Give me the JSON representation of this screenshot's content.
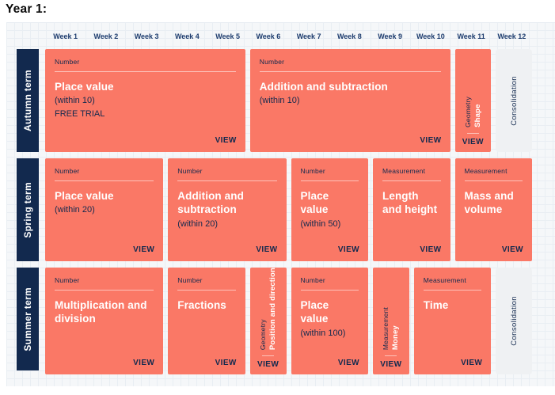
{
  "page": {
    "title": "Year 1:"
  },
  "labels": {
    "view": "VIEW"
  },
  "colors": {
    "block": "#FA7866",
    "navy": "#12294E",
    "consolidation_bg": "#EFF1F3",
    "board_bg": "#F5F7F9"
  },
  "weeks": [
    "Week 1",
    "Week 2",
    "Week 3",
    "Week 4",
    "Week 5",
    "Week 6",
    "Week 7",
    "Week 8",
    "Week 9",
    "Week 10",
    "Week 11",
    "Week 12"
  ],
  "terms": [
    {
      "name": "Autumn term",
      "blocks": [
        {
          "category": "Number",
          "title": "Place value",
          "subtitle": "(within 10)",
          "extra": "FREE TRIAL"
        },
        {
          "category": "Number",
          "title": "Addition and subtraction",
          "subtitle": "(within 10)"
        },
        {
          "category": "Geometry",
          "title": "Shape"
        },
        {
          "title": "Consolidation"
        }
      ]
    },
    {
      "name": "Spring term",
      "blocks": [
        {
          "category": "Number",
          "title": "Place value",
          "subtitle": "(within 20)"
        },
        {
          "category": "Number",
          "title": "Addition and subtraction",
          "subtitle": "(within 20)"
        },
        {
          "category": "Number",
          "title": "Place value",
          "subtitle": "(within 50)"
        },
        {
          "category": "Measurement",
          "title": "Length and height"
        },
        {
          "category": "Measurement",
          "title": "Mass and volume"
        }
      ]
    },
    {
      "name": "Summer term",
      "blocks": [
        {
          "category": "Number",
          "title": "Multiplication and division"
        },
        {
          "category": "Number",
          "title": "Fractions"
        },
        {
          "category": "Geometry",
          "title": "Position and direction"
        },
        {
          "category": "Number",
          "title": "Place value",
          "subtitle": "(within 100)"
        },
        {
          "category": "Measurement",
          "title": "Money"
        },
        {
          "category": "Measurement",
          "title": "Time"
        },
        {
          "title": "Consolidation"
        }
      ]
    }
  ]
}
